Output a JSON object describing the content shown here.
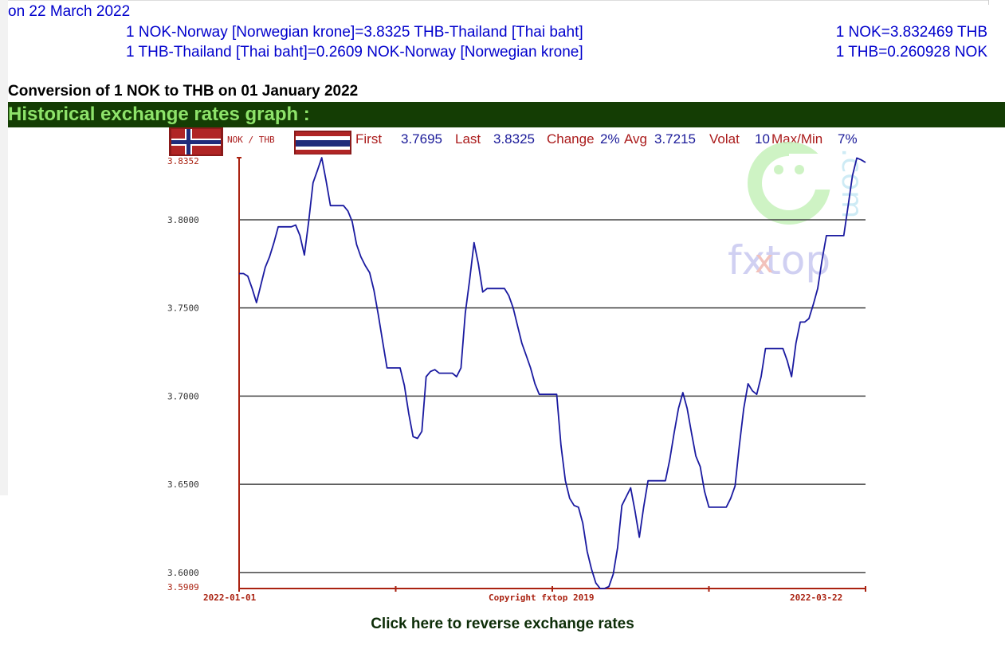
{
  "header": {
    "date_line": "on 22 March 2022",
    "rate_lines": [
      "1 NOK-Norway [Norwegian krone]=3.8325 THB-Thailand [Thai baht]",
      "1 THB-Thailand [Thai baht]=0.2609 NOK-Norway [Norwegian krone]"
    ],
    "rate_short": [
      "1 NOK=3.832469 THB",
      "1 THB=0.260928 NOK"
    ]
  },
  "conversion_title": "Conversion of 1 NOK to THB on 01 January 2022",
  "history_title": "Historical exchange rates graph :",
  "reverse_link": "Click here to reverse exchange rates",
  "colors": {
    "line": "#1a1aa0",
    "axis": "#aa2211",
    "grid": "#444444",
    "stat_label": "#aa1a1a",
    "stat_value": "#1a1a99",
    "header_blue": "#0000cc",
    "history_bar": "#143d04",
    "history_text": "#8ee36a"
  },
  "chart_data": {
    "type": "line",
    "pair_label": "NOK / THB",
    "flags": [
      "norway-flag-icon",
      "thailand-flag-icon"
    ],
    "stats": [
      {
        "label": "First",
        "value": "3.7695"
      },
      {
        "label": "Last",
        "value": "3.8325"
      },
      {
        "label": "Change",
        "value": "2%"
      },
      {
        "label": "Avg",
        "value": "3.7215"
      },
      {
        "label": "Volat",
        "value": "10"
      },
      {
        "label": "Max/Min",
        "value": "7%"
      }
    ],
    "y_ticks": [
      "3.8352",
      "3.8000",
      "3.7500",
      "3.7000",
      "3.6500",
      "3.6000",
      "3.5909"
    ],
    "y_gridlines": [
      3.8,
      3.75,
      3.7,
      3.65,
      3.6
    ],
    "ylim": [
      3.5909,
      3.8352
    ],
    "x_labels": [
      "2022-01-01",
      "Copyright fxtop 2019",
      "2022-03-22"
    ],
    "x_start": "2022-01-01",
    "x_end": "2022-03-22",
    "watermark": "fxtop.com",
    "series": [
      {
        "values": [
          3.7695,
          3.7695,
          3.768,
          3.761,
          3.753,
          3.763,
          3.773,
          3.779,
          3.787,
          3.796,
          3.796,
          3.796,
          3.796,
          3.797,
          3.791,
          3.78,
          3.799,
          3.821,
          3.828,
          3.8352,
          3.822,
          3.808,
          3.808,
          3.808,
          3.808,
          3.805,
          3.799,
          3.786,
          3.779,
          3.774,
          3.77,
          3.76,
          3.746,
          3.731,
          3.716,
          3.716,
          3.716,
          3.716,
          3.706,
          3.69,
          3.677,
          3.676,
          3.68,
          3.711,
          3.714,
          3.715,
          3.713,
          3.713,
          3.713,
          3.713,
          3.711,
          3.716,
          3.747,
          3.766,
          3.787,
          3.775,
          3.759,
          3.761,
          3.761,
          3.761,
          3.761,
          3.761,
          3.757,
          3.75,
          3.74,
          3.73,
          3.723,
          3.716,
          3.707,
          3.701,
          3.701,
          3.701,
          3.701,
          3.701,
          3.672,
          3.652,
          3.642,
          3.638,
          3.637,
          3.628,
          3.612,
          3.602,
          3.594,
          3.5909,
          3.5909,
          3.592,
          3.599,
          3.614,
          3.638,
          3.643,
          3.648,
          3.635,
          3.62,
          3.637,
          3.652,
          3.652,
          3.652,
          3.652,
          3.652,
          3.664,
          3.679,
          3.693,
          3.702,
          3.693,
          3.679,
          3.666,
          3.66,
          3.646,
          3.637,
          3.637,
          3.637,
          3.637,
          3.637,
          3.642,
          3.649,
          3.672,
          3.693,
          3.707,
          3.703,
          3.701,
          3.711,
          3.727,
          3.727,
          3.727,
          3.727,
          3.727,
          3.72,
          3.711,
          3.73,
          3.742,
          3.742,
          3.744,
          3.752,
          3.761,
          3.777,
          3.791,
          3.791,
          3.791,
          3.791,
          3.791,
          3.808,
          3.825,
          3.835,
          3.834,
          3.8325
        ]
      }
    ]
  }
}
